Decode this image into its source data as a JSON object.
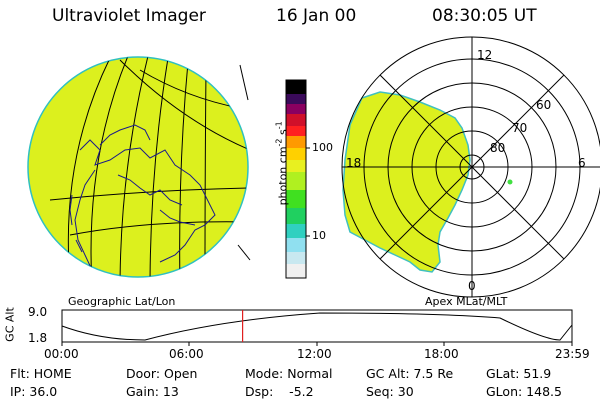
{
  "header": {
    "instrument": "Ultraviolet Imager",
    "date": "16 Jan 00",
    "time": "08:30:05 UT"
  },
  "colorbar": {
    "label": "photon cm^-2 s^-1",
    "ticks": [
      "100",
      "10"
    ]
  },
  "geo_panel": {
    "caption": "Geographic Lat/Lon"
  },
  "polar_panel": {
    "caption": "Apex MLat/MLT",
    "mlt_labels": [
      "12",
      "18",
      "6",
      "0"
    ],
    "mlat_labels": [
      "60",
      "70",
      "80"
    ]
  },
  "altitude_plot": {
    "ylabel": "GC Alt",
    "ymax_label": "9.0",
    "ymin_label": "1.8",
    "time_ticks": [
      "00:00",
      "06:00",
      "12:00",
      "18:00",
      "23:59"
    ],
    "current_time_hours": 8.5
  },
  "status": {
    "row1": {
      "flt": "Flt: HOME",
      "door": "Door: Open",
      "mode": "Mode: Normal",
      "gc_alt": "GC Alt: 7.5 Re",
      "glat": "GLat:  51.9"
    },
    "row2": {
      "ip": "IP: 36.0",
      "gain": "Gain: 13",
      "dsp": "Dsp:    -5.2",
      "seq": "Seq: 30",
      "glon": "GLon: 148.5"
    }
  },
  "colors": {
    "image_fill": "#dcf01e",
    "image_edge": "#30c0c0",
    "coast": "#1a1a8a",
    "marker": "#e02020"
  }
}
